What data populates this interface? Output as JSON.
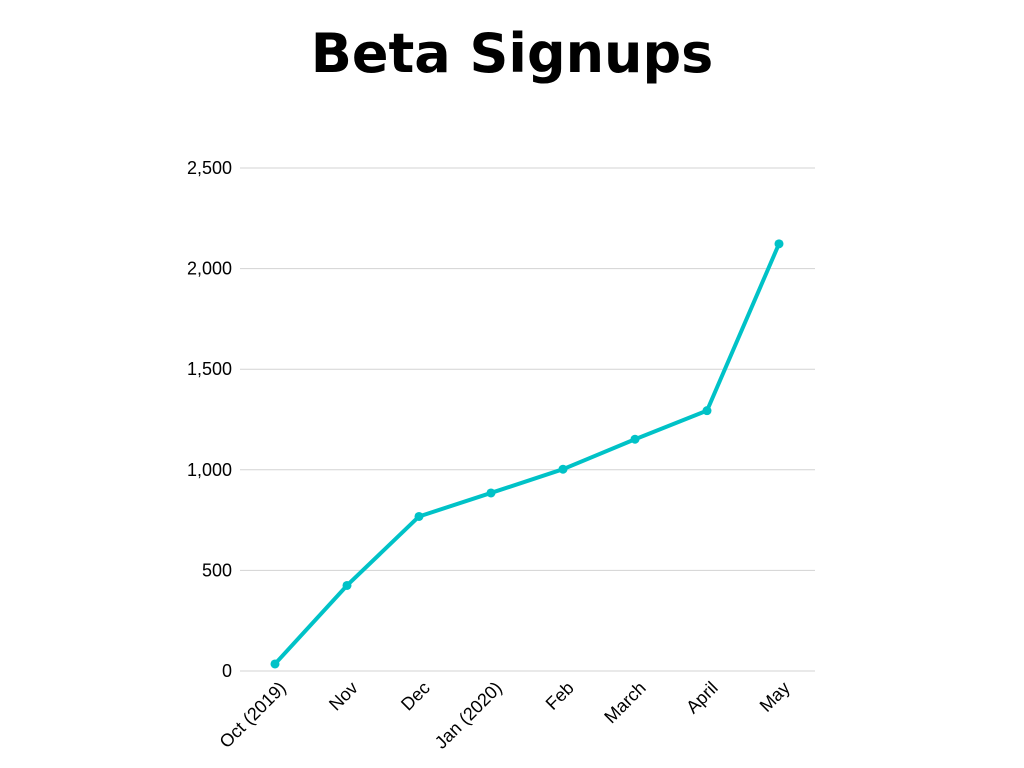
{
  "chart_data": {
    "type": "line",
    "title": "Beta Signups",
    "xlabel": "",
    "ylabel": "",
    "categories": [
      "Oct (2019)",
      "Nov",
      "Dec",
      "Jan (2020)",
      "Feb",
      "March",
      "April",
      "May"
    ],
    "series": [
      {
        "values": [
          35,
          425,
          768,
          885,
          1003,
          1152,
          1294,
          2123
        ]
      }
    ],
    "ylim": [
      0,
      2500
    ],
    "yticks": [
      0,
      500,
      1000,
      1500,
      2000,
      2500
    ],
    "ytick_labels": [
      "0",
      "500",
      "1,000",
      "1,500",
      "2,000",
      "2,500"
    ],
    "grid": true,
    "legend": "none",
    "line_color": "#00c2c7",
    "grid_color": "#d3d3d3"
  }
}
